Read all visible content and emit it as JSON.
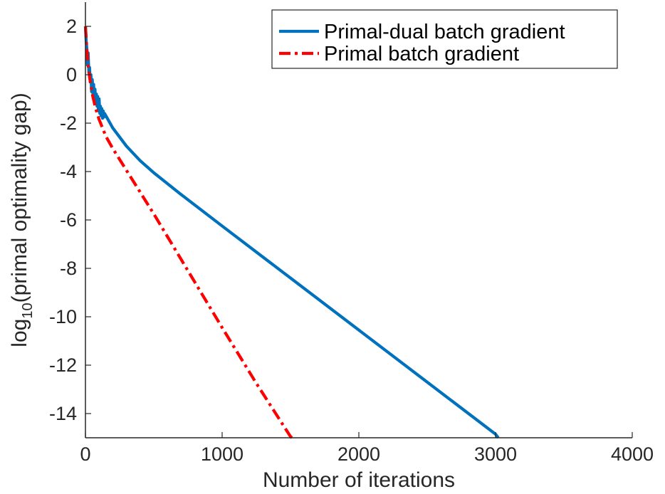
{
  "chart_data": {
    "type": "line",
    "title": "",
    "xlabel": "Number of iterations",
    "ylabel": {
      "prefix": "log",
      "subscript": "10",
      "suffix": "(primal optimality gap)"
    },
    "xlim": [
      0,
      4000
    ],
    "ylim": [
      -15,
      3
    ],
    "xticks": [
      0,
      1000,
      2000,
      3000,
      4000
    ],
    "xtick_labels": [
      "0",
      "1000",
      "2000",
      "3000",
      "4000"
    ],
    "yticks": [
      2,
      0,
      -2,
      -4,
      -6,
      -8,
      -10,
      -12,
      -14
    ],
    "ytick_labels": [
      "2",
      "0",
      "-2",
      "-4",
      "-6",
      "-8",
      "-10",
      "-12",
      "-14"
    ],
    "grid": false,
    "legend_position": "top-right",
    "series": [
      {
        "name": "Primal-dual batch gradient",
        "color": "#0072BD",
        "style": "solid",
        "x": [
          0,
          5,
          10,
          15,
          20,
          25,
          30,
          35,
          40,
          45,
          50,
          55,
          60,
          65,
          70,
          75,
          80,
          85,
          90,
          95,
          100,
          105,
          110,
          115,
          120,
          125,
          130,
          135,
          140,
          150,
          200,
          300,
          400,
          500,
          700,
          1000,
          1500,
          2000,
          2500,
          3000,
          3020
        ],
        "y": [
          2.0,
          1.4,
          1.1,
          0.4,
          0.9,
          0.1,
          0.3,
          -0.3,
          0.0,
          -0.7,
          -0.2,
          -0.8,
          -0.4,
          -1.0,
          -0.6,
          -1.2,
          -0.8,
          -1.3,
          -0.9,
          -1.5,
          -1.0,
          -1.6,
          -1.3,
          -1.7,
          -1.4,
          -1.8,
          -1.5,
          -1.75,
          -1.6,
          -1.7,
          -2.2,
          -2.95,
          -3.55,
          -4.05,
          -4.95,
          -6.25,
          -8.4,
          -10.55,
          -12.7,
          -14.85,
          -15.0
        ]
      },
      {
        "name": "Primal batch gradient",
        "color": "#FF0000",
        "style": "dashdot",
        "x": [
          0,
          10,
          20,
          30,
          50,
          75,
          100,
          150,
          200,
          300,
          500,
          750,
          1000,
          1250,
          1500,
          1510
        ],
        "y": [
          2.0,
          1.1,
          0.4,
          -0.1,
          -0.8,
          -1.4,
          -1.85,
          -2.55,
          -3.05,
          -3.95,
          -5.75,
          -8.1,
          -10.45,
          -12.75,
          -14.95,
          -15.0
        ]
      }
    ]
  }
}
